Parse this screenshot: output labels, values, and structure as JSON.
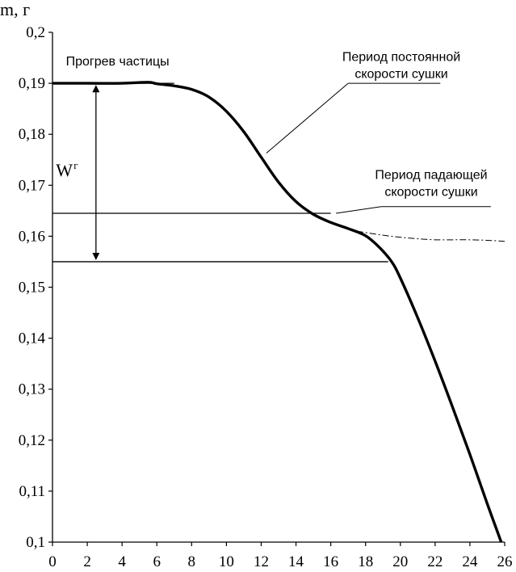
{
  "chart_data": {
    "type": "line",
    "ylabel": "m, г",
    "xlim": [
      0,
      26
    ],
    "ylim": [
      0.1,
      0.2
    ],
    "x_ticks": [
      "0",
      "2",
      "4",
      "6",
      "8",
      "10",
      "12",
      "14",
      "16",
      "18",
      "20",
      "22",
      "24",
      "26"
    ],
    "y_ticks": [
      "0,1",
      "0,11",
      "0,12",
      "0,13",
      "0,14",
      "0,15",
      "0,16",
      "0,17",
      "0,18",
      "0,19",
      "0,2"
    ],
    "grid": false,
    "series": [
      {
        "style": "solid",
        "x": [
          0,
          2,
          4,
          5.5,
          6,
          7,
          8,
          9,
          10,
          11,
          12,
          13,
          14,
          15,
          16,
          17,
          18,
          18.8,
          19.5,
          20,
          21,
          22,
          23,
          24,
          25,
          25.8
        ],
        "y": [
          0.19,
          0.19,
          0.19,
          0.1902,
          0.1899,
          0.1895,
          0.1888,
          0.1873,
          0.1845,
          0.1805,
          0.1755,
          0.1706,
          0.1668,
          0.1643,
          0.1627,
          0.1615,
          0.1601,
          0.1578,
          0.155,
          0.1518,
          0.144,
          0.1355,
          0.1265,
          0.1172,
          0.1075,
          0.1
        ]
      },
      {
        "style": "dash-dot",
        "x": [
          17.5,
          19,
          20,
          21,
          22,
          23,
          24,
          25,
          26
        ],
        "y": [
          0.161,
          0.1602,
          0.1598,
          0.1595,
          0.1593,
          0.1593,
          0.1593,
          0.1592,
          0.159
        ]
      }
    ],
    "reference_lines": [
      {
        "y": 0.19,
        "x_range": [
          0,
          7
        ]
      },
      {
        "y": 0.1645,
        "x_range": [
          0,
          16
        ]
      },
      {
        "y": 0.155,
        "x_range": [
          0,
          19.3
        ]
      }
    ],
    "annotations": [
      {
        "text": "Прогрев частицы",
        "x": 0.4,
        "y": 0.1935
      },
      {
        "lines": [
          "Период постоянной",
          "скорости сушки"
        ],
        "x": 18.3,
        "y": 0.1944,
        "pointer_from": [
          12.3,
          0.1763
        ],
        "pointer_to": [
          17,
          0.19
        ],
        "pointer_tail": [
          22.3,
          0.19
        ]
      },
      {
        "lines": [
          "Период падающей",
          "скорости сушки"
        ],
        "x": 19,
        "y": 0.1712,
        "pointer_from": [
          16.3,
          0.1645
        ],
        "pointer_to": [
          18.9,
          0.1658
        ],
        "pointer_tail": [
          25.2,
          0.1658
        ]
      },
      {
        "text": "W",
        "superscript": "г",
        "x": 0.2,
        "y": 0.1718
      }
    ],
    "double_arrow": {
      "x": 2.5,
      "y_from": 0.19,
      "y_to": 0.155
    }
  }
}
